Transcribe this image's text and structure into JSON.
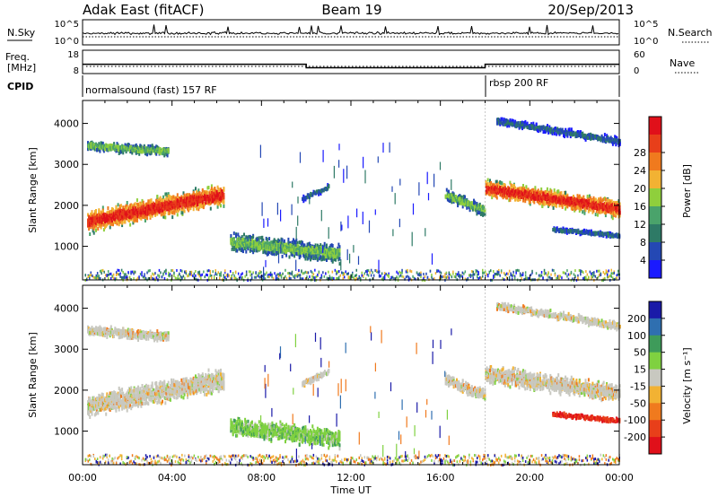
{
  "header": {
    "title_left": "Adak East (fitACF)",
    "title_center": "Beam 19",
    "title_right": "20/Sep/2013"
  },
  "top_panels": {
    "noise": {
      "left_label": "N.Sky",
      "right_label": "N.Search",
      "left_ticks": [
        "10^5",
        "10^0"
      ],
      "right_ticks": [
        "10^5",
        "10^0"
      ]
    },
    "freq": {
      "left_label_1": "Freq.",
      "left_label_2": "[MHz]",
      "left_ticks": [
        "18",
        "8"
      ],
      "right_label": "Nave",
      "right_ticks": [
        "60",
        "0"
      ],
      "freq_steps": [
        {
          "start_h": 0,
          "end_h": 10,
          "value": 12
        },
        {
          "start_h": 10,
          "end_h": 18,
          "value": 10.5
        },
        {
          "start_h": 18,
          "end_h": 24,
          "value": 12
        }
      ]
    },
    "cpid": {
      "label": "CPID",
      "segments": [
        {
          "start_h": 0,
          "text": "normalsound (fast) 157 RF"
        },
        {
          "start_h": 18,
          "text": "rbsp 200 RF"
        }
      ]
    }
  },
  "chart_data": [
    {
      "type": "heatmap",
      "name": "power",
      "ylabel": "Slant Range [km]",
      "xlabel": "",
      "ylim": [
        180,
        4560
      ],
      "xlim_hours": [
        0,
        24
      ],
      "yticks": [
        "1000",
        "2000",
        "3000",
        "4000"
      ],
      "colorbar": {
        "label": "Power [dB]",
        "ticks": [
          "4",
          "8",
          "12",
          "16",
          "20",
          "24",
          "28"
        ],
        "colors": [
          "#1a1aff",
          "#2448b4",
          "#2e7a66",
          "#4aa36b",
          "#8fcf3c",
          "#f2b233",
          "#f07a1e",
          "#e83f1a",
          "#e0101a"
        ]
      },
      "bands": [
        {
          "t0": 0.2,
          "t1": 6.3,
          "r_start": 1650,
          "r_end": 2300,
          "width": 550,
          "level": "high"
        },
        {
          "t0": 0.2,
          "t1": 3.8,
          "r_start": 3500,
          "r_end": 3350,
          "width": 250,
          "level": "mid"
        },
        {
          "t0": 6.6,
          "t1": 11.5,
          "r_start": 1150,
          "r_end": 850,
          "width": 450,
          "level": "mid"
        },
        {
          "t0": 9.8,
          "t1": 11.0,
          "r_start": 2200,
          "r_end": 2500,
          "width": 150,
          "level": "low"
        },
        {
          "t0": 16.2,
          "t1": 18.0,
          "r_start": 2300,
          "r_end": 1900,
          "width": 300,
          "level": "mid"
        },
        {
          "t0": 18.0,
          "t1": 24.0,
          "r_start": 2450,
          "r_end": 1950,
          "width": 450,
          "level": "high"
        },
        {
          "t0": 18.5,
          "t1": 24.0,
          "r_start": 4100,
          "r_end": 3600,
          "width": 200,
          "level": "low"
        },
        {
          "t0": 21.0,
          "t1": 24.0,
          "r_start": 1450,
          "r_end": 1300,
          "width": 120,
          "level": "low"
        }
      ]
    },
    {
      "type": "heatmap",
      "name": "velocity",
      "ylabel": "Slant Range [km]",
      "xlabel": "Time UT",
      "ylim": [
        180,
        4560
      ],
      "xlim_hours": [
        0,
        24
      ],
      "yticks": [
        "1000",
        "2000",
        "3000",
        "4000"
      ],
      "xticks": [
        "00:00",
        "04:00",
        "08:00",
        "12:00",
        "16:00",
        "20:00",
        "00:00"
      ],
      "colorbar": {
        "label": "Velocity [m s⁻¹]",
        "ticks": [
          "200",
          "100",
          "50",
          "15",
          "-15",
          "-50",
          "-100",
          "-200"
        ],
        "colors": [
          "#1a1aa8",
          "#2f6fb0",
          "#3e9b5a",
          "#7fd140",
          "#c8c8c0",
          "#f2b233",
          "#f07a1e",
          "#e83f1a",
          "#e0101a"
        ]
      },
      "bands": [
        {
          "t0": 0.2,
          "t1": 6.3,
          "r_start": 1650,
          "r_end": 2300,
          "width": 550,
          "level": "gray"
        },
        {
          "t0": 0.2,
          "t1": 3.8,
          "r_start": 3500,
          "r_end": 3350,
          "width": 250,
          "level": "gray"
        },
        {
          "t0": 6.6,
          "t1": 11.5,
          "r_start": 1150,
          "r_end": 850,
          "width": 450,
          "level": "green"
        },
        {
          "t0": 9.8,
          "t1": 11.0,
          "r_start": 2200,
          "r_end": 2500,
          "width": 150,
          "level": "gray"
        },
        {
          "t0": 16.2,
          "t1": 18.0,
          "r_start": 2300,
          "r_end": 1900,
          "width": 300,
          "level": "gray"
        },
        {
          "t0": 18.0,
          "t1": 24.0,
          "r_start": 2450,
          "r_end": 1950,
          "width": 450,
          "level": "gray"
        },
        {
          "t0": 18.5,
          "t1": 24.0,
          "r_start": 4100,
          "r_end": 3600,
          "width": 200,
          "level": "gray"
        },
        {
          "t0": 21.0,
          "t1": 24.0,
          "r_start": 1450,
          "r_end": 1300,
          "width": 120,
          "level": "red"
        }
      ]
    }
  ]
}
